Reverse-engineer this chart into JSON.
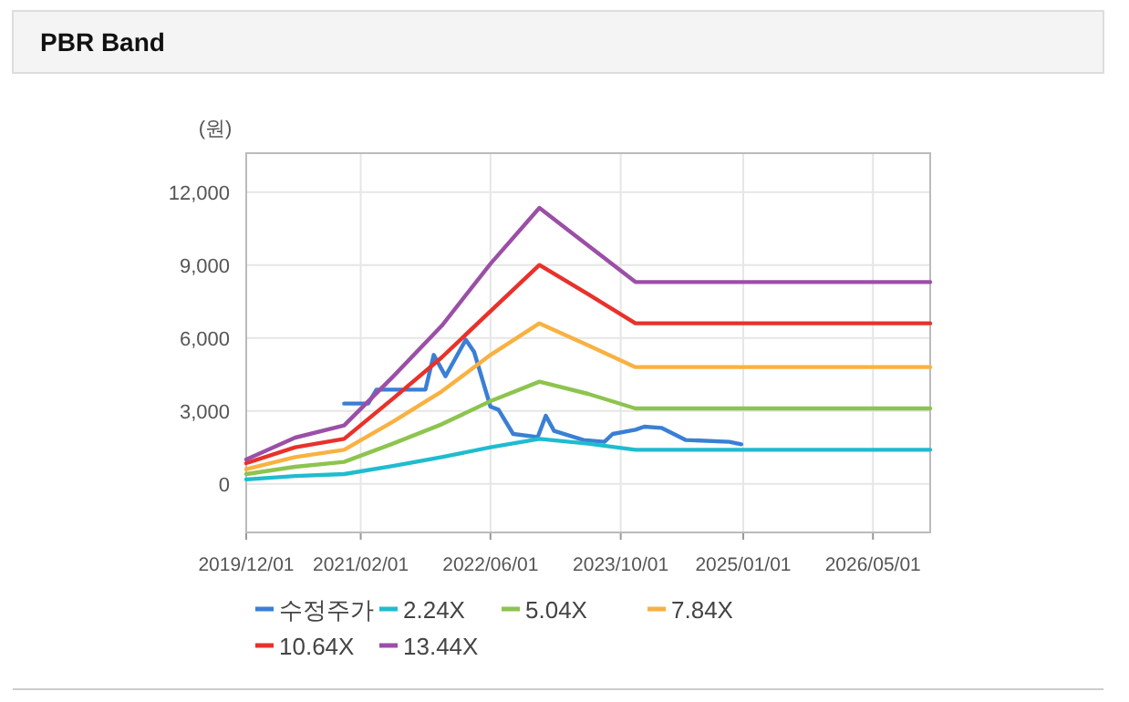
{
  "chart_data": {
    "type": "line",
    "title": "PBR Band",
    "ylabel": "(원)",
    "xlim": [
      "2019-12-01",
      "2026-12-01"
    ],
    "xticks": [
      {
        "value": "2019-12-01",
        "label": "2019/12/01"
      },
      {
        "value": "2021-02-01",
        "label": "2021/02/01"
      },
      {
        "value": "2022-06-01",
        "label": "2022/06/01"
      },
      {
        "value": "2023-10-01",
        "label": "2023/10/01"
      },
      {
        "value": "2025-01-01",
        "label": "2025/01/01"
      },
      {
        "value": "2026-05-01",
        "label": "2026/05/01"
      }
    ],
    "ylim": [
      -2000,
      13600
    ],
    "yticks": [
      {
        "value": 0,
        "label": "0"
      },
      {
        "value": 3000,
        "label": "3,000"
      },
      {
        "value": 6000,
        "label": "6,000"
      },
      {
        "value": 9000,
        "label": "9,000"
      },
      {
        "value": 12000,
        "label": "12,000"
      }
    ],
    "grid": true,
    "legend": "bottom",
    "marker": "none",
    "line_style": "solid",
    "series": [
      {
        "name": "수정주가",
        "color": "#3a7fd5",
        "x": [
          "2020-12-01",
          "2021-03-01",
          "2021-04-01",
          "2021-10-01",
          "2021-11-01",
          "2021-12-15",
          "2022-03-01",
          "2022-04-01",
          "2022-06-01",
          "2022-07-01",
          "2022-08-25",
          "2022-11-25",
          "2022-12-25",
          "2023-01-25",
          "2023-05-15",
          "2023-08-01",
          "2023-09-01",
          "2023-11-25",
          "2023-12-28",
          "2024-03-01",
          "2024-06-01",
          "2024-11-10",
          "2024-12-25"
        ],
        "values": [
          3300,
          3300,
          3875,
          3875,
          5300,
          4425,
          5925,
          5425,
          3175,
          3050,
          2050,
          1925,
          2800,
          2175,
          1800,
          1725,
          2050,
          2225,
          2350,
          2300,
          1800,
          1725,
          1625
        ]
      },
      {
        "name": "2.24X",
        "color": "#1fbccf",
        "x": [
          "2019-12-01",
          "2020-06-01",
          "2020-12-01",
          "2021-06-01",
          "2021-12-01",
          "2022-06-01",
          "2022-12-01",
          "2023-06-01",
          "2023-11-25",
          "2026-12-01"
        ],
        "values": [
          180,
          320,
          400,
          730,
          1100,
          1500,
          1850,
          1650,
          1400,
          1400
        ]
      },
      {
        "name": "5.04X",
        "color": "#8dc44e",
        "x": [
          "2019-12-01",
          "2020-06-01",
          "2020-12-01",
          "2021-06-01",
          "2021-12-01",
          "2022-06-01",
          "2022-12-01",
          "2023-06-01",
          "2023-11-25",
          "2026-12-01"
        ],
        "values": [
          400,
          700,
          900,
          1650,
          2450,
          3400,
          4200,
          3700,
          3100,
          3100
        ]
      },
      {
        "name": "7.84X",
        "color": "#f9b141",
        "x": [
          "2019-12-01",
          "2020-06-01",
          "2020-12-01",
          "2021-06-01",
          "2021-12-01",
          "2022-06-01",
          "2022-12-01",
          "2023-06-01",
          "2023-11-25",
          "2026-12-01"
        ],
        "values": [
          600,
          1100,
          1400,
          2550,
          3800,
          5300,
          6600,
          5700,
          4800,
          4800
        ]
      },
      {
        "name": "10.64X",
        "color": "#e8312a",
        "x": [
          "2019-12-01",
          "2020-06-01",
          "2020-12-01",
          "2021-06-01",
          "2021-12-01",
          "2022-06-01",
          "2022-12-01",
          "2023-06-01",
          "2023-11-25",
          "2026-12-01"
        ],
        "values": [
          850,
          1500,
          1850,
          3500,
          5200,
          7100,
          9000,
          7800,
          6600,
          6600
        ]
      },
      {
        "name": "13.44X",
        "color": "#9b4fa6",
        "x": [
          "2019-12-01",
          "2020-06-01",
          "2020-12-01",
          "2021-06-01",
          "2021-12-01",
          "2022-06-01",
          "2022-12-01",
          "2023-06-01",
          "2023-11-25",
          "2026-12-01"
        ],
        "values": [
          1000,
          1900,
          2400,
          4400,
          6500,
          9050,
          11350,
          9800,
          8300,
          8300
        ]
      }
    ]
  }
}
